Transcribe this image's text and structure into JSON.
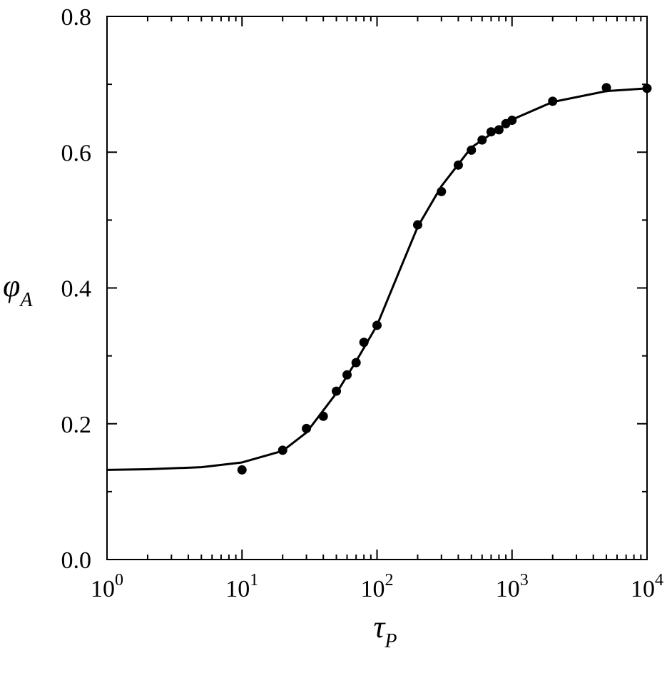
{
  "chart_data": {
    "type": "scatter",
    "xlabel": {
      "symbol": "τ",
      "subscript": "P"
    },
    "ylabel": {
      "symbol": "φ",
      "subscript": "A"
    },
    "xscale": "log",
    "xlim": [
      1,
      10000
    ],
    "ylim": [
      0,
      0.8
    ],
    "xticks": [
      {
        "value": 1,
        "label": {
          "base": "10",
          "exp": "0"
        }
      },
      {
        "value": 10,
        "label": {
          "base": "10",
          "exp": "1"
        }
      },
      {
        "value": 100,
        "label": {
          "base": "10",
          "exp": "2"
        }
      },
      {
        "value": 1000,
        "label": {
          "base": "10",
          "exp": "3"
        }
      },
      {
        "value": 10000,
        "label": {
          "base": "10",
          "exp": "4"
        }
      }
    ],
    "yticks": [
      {
        "value": 0,
        "label": "0.0"
      },
      0.2,
      0.4,
      0.6,
      0.8
    ],
    "series": [
      {
        "type": "scatter",
        "color": "#000000",
        "x": [
          10,
          20,
          30,
          40,
          50,
          60,
          70,
          80,
          100,
          200,
          300,
          400,
          500,
          600,
          700,
          800,
          900,
          1000,
          2000,
          5000,
          10000
        ],
        "values": [
          0.132,
          0.161,
          0.193,
          0.211,
          0.248,
          0.272,
          0.29,
          0.32,
          0.345,
          0.493,
          0.542,
          0.581,
          0.603,
          0.618,
          0.63,
          0.633,
          0.642,
          0.647,
          0.675,
          0.695,
          0.694
        ]
      },
      {
        "type": "line",
        "color": "#000000",
        "x": [
          1,
          2,
          5,
          10,
          20,
          30,
          50,
          70,
          100,
          150,
          200,
          300,
          500,
          1000,
          2000,
          5000,
          10000
        ],
        "values": [
          0.132,
          0.133,
          0.136,
          0.143,
          0.16,
          0.187,
          0.245,
          0.292,
          0.345,
          0.43,
          0.49,
          0.55,
          0.607,
          0.648,
          0.674,
          0.69,
          0.694
        ]
      }
    ]
  }
}
